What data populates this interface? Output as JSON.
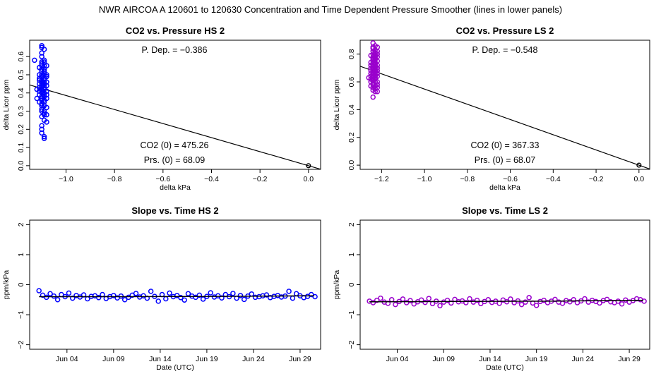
{
  "page_title": "NWR   AIRCOA A   120601 to 120630   Concentration and Time Dependent Pressure Smoother (lines in lower panels)",
  "chart_data": [
    {
      "id": "p1",
      "type": "scatter",
      "title": "CO2 vs. Pressure HS 2",
      "xlabel": "delta kPa",
      "ylabel": "delta Licor ppm",
      "xlim": [
        -1.15,
        0.05
      ],
      "ylim": [
        -0.02,
        0.69
      ],
      "xticks": [
        -1.0,
        -0.8,
        -0.6,
        -0.4,
        -0.2,
        0.0
      ],
      "xtick_labels": [
        "−1.0",
        "−0.8",
        "−0.6",
        "−0.4",
        "−0.2",
        "0.0"
      ],
      "yticks": [
        0.0,
        0.1,
        0.2,
        0.3,
        0.4,
        0.5,
        0.6
      ],
      "ytick_labels": [
        "0.0",
        "0.1",
        "0.2",
        "0.3",
        "0.4",
        "0.5",
        "0.6"
      ],
      "color": "#0000ff",
      "fit_line": {
        "slope": -0.386,
        "intercept": 0.0,
        "color": "#000000"
      },
      "origin_point": [
        0.0,
        0.0
      ],
      "points": {
        "x": [
          -1.13,
          -1.12,
          -1.12,
          -1.11,
          -1.11,
          -1.11,
          -1.11,
          -1.11,
          -1.11,
          -1.11,
          -1.11,
          -1.11,
          -1.1,
          -1.1,
          -1.1,
          -1.1,
          -1.1,
          -1.1,
          -1.1,
          -1.1,
          -1.1,
          -1.1,
          -1.1,
          -1.1,
          -1.1,
          -1.1,
          -1.1,
          -1.1,
          -1.1,
          -1.1,
          -1.1,
          -1.1,
          -1.1,
          -1.1,
          -1.1,
          -1.1,
          -1.1,
          -1.1,
          -1.1,
          -1.1,
          -1.1,
          -1.1,
          -1.09,
          -1.09,
          -1.09,
          -1.09,
          -1.09,
          -1.09,
          -1.09,
          -1.09,
          -1.09,
          -1.09,
          -1.09,
          -1.09,
          -1.09,
          -1.09,
          -1.09,
          -1.09,
          -1.09,
          -1.09,
          -1.09,
          -1.09,
          -1.09,
          -1.09,
          -1.09,
          -1.09,
          -1.09,
          -1.09,
          -1.09,
          -1.08,
          -1.08,
          -1.08,
          -1.08,
          -1.08,
          -1.08,
          -1.08,
          -1.08,
          -1.08,
          -1.08,
          -1.08
        ],
        "y": [
          0.58,
          0.42,
          0.37,
          0.54,
          0.5,
          0.45,
          0.41,
          0.48,
          0.43,
          0.39,
          0.35,
          0.47,
          0.62,
          0.66,
          0.6,
          0.55,
          0.52,
          0.46,
          0.44,
          0.4,
          0.36,
          0.33,
          0.3,
          0.27,
          0.22,
          0.18,
          0.49,
          0.53,
          0.38,
          0.5,
          0.65,
          0.57,
          0.43,
          0.47,
          0.31,
          0.34,
          0.42,
          0.56,
          0.45,
          0.37,
          0.41,
          0.2,
          0.64,
          0.55,
          0.51,
          0.48,
          0.44,
          0.39,
          0.36,
          0.29,
          0.25,
          0.15,
          0.58,
          0.46,
          0.42,
          0.33,
          0.52,
          0.5,
          0.4,
          0.38,
          0.45,
          0.35,
          0.3,
          0.47,
          0.53,
          0.43,
          0.16,
          0.28,
          0.57,
          0.55,
          0.5,
          0.46,
          0.41,
          0.37,
          0.32,
          0.28,
          0.24,
          0.44,
          0.49,
          0.39
        ]
      },
      "annotations": [
        "P. Dep. =  −0.386",
        "CO2 (0) =  475.26",
        "Prs. (0) =  68.09"
      ]
    },
    {
      "id": "p2",
      "type": "scatter",
      "title": "CO2 vs. Pressure LS 2",
      "xlabel": "delta kPa",
      "ylabel": "delta Licor ppm",
      "xlim": [
        -1.3,
        0.05
      ],
      "ylim": [
        -0.03,
        0.9
      ],
      "xticks": [
        -1.2,
        -1.0,
        -0.8,
        -0.6,
        -0.4,
        -0.2,
        0.0
      ],
      "xtick_labels": [
        "−1.2",
        "−1.0",
        "−0.8",
        "−0.6",
        "−0.4",
        "−0.2",
        "0.0"
      ],
      "yticks": [
        0.0,
        0.2,
        0.4,
        0.6,
        0.8
      ],
      "ytick_labels": [
        "0.0",
        "0.2",
        "0.4",
        "0.6",
        "0.8"
      ],
      "color": "#9900cc",
      "fit_line": {
        "slope": -0.548,
        "intercept": 0.0,
        "color": "#000000"
      },
      "origin_point": [
        0.0,
        0.0
      ],
      "points": {
        "x": [
          -1.26,
          -1.25,
          -1.25,
          -1.25,
          -1.25,
          -1.25,
          -1.25,
          -1.25,
          -1.25,
          -1.25,
          -1.25,
          -1.24,
          -1.24,
          -1.24,
          -1.24,
          -1.24,
          -1.24,
          -1.24,
          -1.24,
          -1.24,
          -1.24,
          -1.24,
          -1.24,
          -1.24,
          -1.24,
          -1.24,
          -1.24,
          -1.24,
          -1.24,
          -1.24,
          -1.24,
          -1.24,
          -1.24,
          -1.24,
          -1.24,
          -1.23,
          -1.23,
          -1.23,
          -1.23,
          -1.23,
          -1.23,
          -1.23,
          -1.23,
          -1.23,
          -1.23,
          -1.23,
          -1.23,
          -1.23,
          -1.23,
          -1.23,
          -1.23,
          -1.23,
          -1.23,
          -1.23,
          -1.23,
          -1.23,
          -1.23,
          -1.23,
          -1.22,
          -1.22,
          -1.22,
          -1.22,
          -1.22,
          -1.22,
          -1.22,
          -1.22,
          -1.22,
          -1.22,
          -1.22,
          -1.22,
          -1.22,
          -1.22
        ],
        "y": [
          0.63,
          0.7,
          0.66,
          0.6,
          0.57,
          0.74,
          0.79,
          0.68,
          0.64,
          0.72,
          0.62,
          0.88,
          0.85,
          0.82,
          0.78,
          0.76,
          0.73,
          0.71,
          0.69,
          0.67,
          0.65,
          0.63,
          0.61,
          0.59,
          0.56,
          0.54,
          0.49,
          0.8,
          0.75,
          0.7,
          0.66,
          0.62,
          0.58,
          0.84,
          0.77,
          0.86,
          0.83,
          0.79,
          0.76,
          0.74,
          0.71,
          0.69,
          0.67,
          0.64,
          0.62,
          0.6,
          0.57,
          0.55,
          0.53,
          0.81,
          0.78,
          0.73,
          0.68,
          0.65,
          0.6,
          0.72,
          0.77,
          0.63,
          0.85,
          0.8,
          0.75,
          0.72,
          0.68,
          0.64,
          0.6,
          0.56,
          0.53,
          0.82,
          0.78,
          0.7,
          0.66,
          0.58
        ]
      },
      "annotations": [
        "P. Dep. =  −0.548",
        "CO2 (0) =  367.33",
        "Prs. (0) =  68.07"
      ]
    },
    {
      "id": "p3",
      "type": "scatter",
      "title": "Slope vs. Time HS 2",
      "xlabel": "Date (UTC)",
      "ylabel": "ppm/kPa",
      "xlim": [
        0.0,
        31.2
      ],
      "ylim": [
        -2.15,
        2.15
      ],
      "xticks": [
        4,
        9,
        14,
        19,
        24,
        29
      ],
      "xtick_labels": [
        "Jun 04",
        "Jun 09",
        "Jun 14",
        "Jun 19",
        "Jun 24",
        "Jun 29"
      ],
      "yticks": [
        -2,
        -1,
        0,
        1,
        2
      ],
      "ytick_labels": [
        "−2",
        "−1",
        "0",
        "1",
        "2"
      ],
      "color": "#0000ff",
      "smoother": {
        "x": [
          1.0,
          10.0,
          20.0,
          30.5
        ],
        "y": [
          -0.4,
          -0.4,
          -0.39,
          -0.37
        ],
        "color": "#000000"
      },
      "points": {
        "x": [
          1.0,
          1.4,
          1.8,
          2.2,
          2.6,
          3.0,
          3.4,
          3.8,
          4.2,
          4.6,
          5.0,
          5.4,
          5.8,
          6.2,
          6.6,
          7.0,
          7.4,
          7.8,
          8.2,
          8.6,
          9.0,
          9.4,
          9.8,
          10.2,
          10.6,
          11.0,
          11.4,
          11.8,
          12.2,
          12.6,
          13.0,
          13.4,
          13.8,
          14.2,
          14.6,
          15.0,
          15.4,
          15.8,
          16.2,
          16.6,
          17.0,
          17.4,
          17.8,
          18.2,
          18.6,
          19.0,
          19.4,
          19.8,
          20.2,
          20.6,
          21.0,
          21.4,
          21.8,
          22.2,
          22.6,
          23.0,
          23.4,
          23.8,
          24.2,
          24.6,
          25.0,
          25.4,
          25.8,
          26.2,
          26.6,
          27.0,
          27.4,
          27.8,
          28.2,
          28.6,
          29.0,
          29.4,
          29.8,
          30.2,
          30.6
        ],
        "y": [
          -0.2,
          -0.35,
          -0.42,
          -0.3,
          -0.38,
          -0.5,
          -0.33,
          -0.4,
          -0.28,
          -0.45,
          -0.36,
          -0.41,
          -0.34,
          -0.47,
          -0.39,
          -0.37,
          -0.43,
          -0.33,
          -0.46,
          -0.4,
          -0.36,
          -0.44,
          -0.38,
          -0.5,
          -0.42,
          -0.35,
          -0.29,
          -0.41,
          -0.37,
          -0.45,
          -0.22,
          -0.39,
          -0.55,
          -0.33,
          -0.47,
          -0.28,
          -0.4,
          -0.36,
          -0.43,
          -0.51,
          -0.3,
          -0.38,
          -0.42,
          -0.35,
          -0.48,
          -0.39,
          -0.27,
          -0.41,
          -0.37,
          -0.44,
          -0.33,
          -0.4,
          -0.29,
          -0.45,
          -0.36,
          -0.49,
          -0.38,
          -0.31,
          -0.42,
          -0.4,
          -0.37,
          -0.34,
          -0.43,
          -0.39,
          -0.36,
          -0.41,
          -0.38,
          -0.22,
          -0.45,
          -0.3,
          -0.37,
          -0.43,
          -0.39,
          -0.33,
          -0.4
        ]
      },
      "annotations": []
    },
    {
      "id": "p4",
      "type": "scatter",
      "title": "Slope vs. Time LS 2",
      "xlabel": "Date (UTC)",
      "ylabel": "ppm/kPa",
      "xlim": [
        0.0,
        31.2
      ],
      "ylim": [
        -2.15,
        2.15
      ],
      "xticks": [
        4,
        9,
        14,
        19,
        24,
        29
      ],
      "xtick_labels": [
        "Jun 04",
        "Jun 09",
        "Jun 14",
        "Jun 19",
        "Jun 24",
        "Jun 29"
      ],
      "yticks": [
        -2,
        -1,
        0,
        1,
        2
      ],
      "ytick_labels": [
        "−2",
        "−1",
        "0",
        "1",
        "2"
      ],
      "color": "#9900cc",
      "smoother": {
        "x": [
          1.0,
          10.0,
          20.0,
          30.5
        ],
        "y": [
          -0.57,
          -0.56,
          -0.55,
          -0.52
        ],
        "color": "#000000"
      },
      "points": {
        "x": [
          1.0,
          1.4,
          1.8,
          2.2,
          2.6,
          3.0,
          3.4,
          3.8,
          4.2,
          4.6,
          5.0,
          5.4,
          5.8,
          6.2,
          6.6,
          7.0,
          7.4,
          7.8,
          8.2,
          8.6,
          9.0,
          9.4,
          9.8,
          10.2,
          10.6,
          11.0,
          11.4,
          11.8,
          12.2,
          12.6,
          13.0,
          13.4,
          13.8,
          14.2,
          14.6,
          15.0,
          15.4,
          15.8,
          16.2,
          16.6,
          17.0,
          17.4,
          17.8,
          18.2,
          18.6,
          19.0,
          19.4,
          19.8,
          20.2,
          20.6,
          21.0,
          21.4,
          21.8,
          22.2,
          22.6,
          23.0,
          23.4,
          23.8,
          24.2,
          24.6,
          25.0,
          25.4,
          25.8,
          26.2,
          26.6,
          27.0,
          27.4,
          27.8,
          28.2,
          28.6,
          29.0,
          29.4,
          29.8,
          30.2,
          30.6
        ],
        "y": [
          -0.55,
          -0.6,
          -0.52,
          -0.45,
          -0.58,
          -0.62,
          -0.5,
          -0.66,
          -0.56,
          -0.48,
          -0.6,
          -0.53,
          -0.64,
          -0.57,
          -0.51,
          -0.59,
          -0.46,
          -0.63,
          -0.55,
          -0.7,
          -0.58,
          -0.52,
          -0.61,
          -0.49,
          -0.57,
          -0.54,
          -0.6,
          -0.47,
          -0.58,
          -0.52,
          -0.63,
          -0.56,
          -0.5,
          -0.59,
          -0.55,
          -0.62,
          -0.51,
          -0.57,
          -0.48,
          -0.6,
          -0.54,
          -0.66,
          -0.58,
          -0.43,
          -0.61,
          -0.69,
          -0.56,
          -0.52,
          -0.6,
          -0.55,
          -0.49,
          -0.58,
          -0.62,
          -0.53,
          -0.57,
          -0.5,
          -0.6,
          -0.54,
          -0.47,
          -0.58,
          -0.52,
          -0.56,
          -0.61,
          -0.53,
          -0.49,
          -0.57,
          -0.6,
          -0.55,
          -0.64,
          -0.51,
          -0.58,
          -0.53,
          -0.47,
          -0.5,
          -0.55
        ]
      },
      "annotations": []
    }
  ]
}
